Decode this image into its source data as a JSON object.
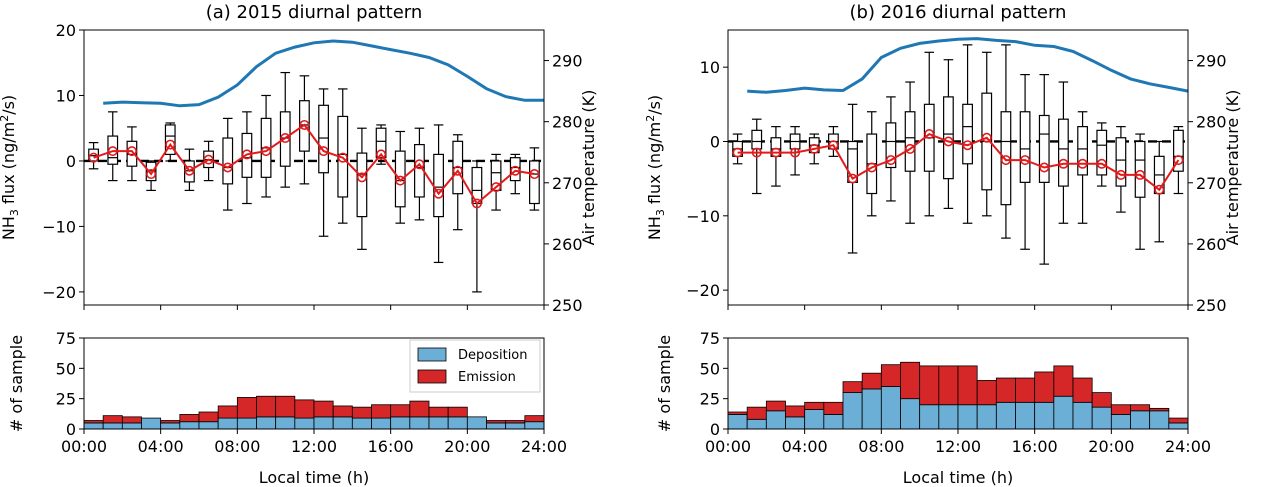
{
  "chart_data": [
    {
      "type": "box",
      "title": "(a) 2015 diurnal pattern",
      "ylabel_main": "NH",
      "ylabel_sub": "3",
      "ylabel_rest": " flux (ng/m",
      "ylabel_sup": "2",
      "ylabel_end": "/s)",
      "y2label": "Air temperature (K)",
      "ylim": [
        -22,
        20
      ],
      "y2lim": [
        250,
        295
      ],
      "yticks": [
        20,
        10,
        0,
        -10,
        -20
      ],
      "ytick_labels": [
        "20",
        "10",
        "0",
        "−10",
        "−20"
      ],
      "y2ticks": [
        290,
        280,
        270,
        260,
        250
      ],
      "y2tick_labels": [
        "290",
        "280",
        "270",
        "260",
        "250"
      ],
      "x_hours": [
        0.5,
        1.5,
        2.5,
        3.5,
        4.5,
        5.5,
        6.5,
        7.5,
        8.5,
        9.5,
        10.5,
        11.5,
        12.5,
        13.5,
        14.5,
        15.5,
        16.5,
        17.5,
        18.5,
        19.5,
        20.5,
        21.5,
        22.5,
        23.5
      ],
      "boxes": [
        {
          "whislo": -1.2,
          "q1": 0.0,
          "med": 0.8,
          "q3": 1.8,
          "whishi": 2.8
        },
        {
          "whislo": -3.0,
          "q1": -0.5,
          "med": 0.5,
          "q3": 3.8,
          "whishi": 7.5
        },
        {
          "whislo": -3.0,
          "q1": -0.8,
          "med": 1.0,
          "q3": 3.0,
          "whishi": 5.2
        },
        {
          "whislo": -4.5,
          "q1": -3.0,
          "med": -1.5,
          "q3": -0.2,
          "whishi": 0.0
        },
        {
          "whislo": 0.0,
          "q1": 1.0,
          "med": 3.8,
          "q3": 5.5,
          "whishi": 5.8
        },
        {
          "whislo": -4.5,
          "q1": -3.2,
          "med": -1.5,
          "q3": 0.0,
          "whishi": 1.8
        },
        {
          "whislo": -3.0,
          "q1": -1.0,
          "med": 0.2,
          "q3": 1.5,
          "whishi": 3.0
        },
        {
          "whislo": -7.5,
          "q1": -3.5,
          "med": -1.0,
          "q3": 3.5,
          "whishi": 6.5
        },
        {
          "whislo": -6.5,
          "q1": -2.5,
          "med": 0.5,
          "q3": 4.2,
          "whishi": 7.5
        },
        {
          "whislo": -5.5,
          "q1": -2.5,
          "med": 2.0,
          "q3": 6.5,
          "whishi": 10.0
        },
        {
          "whislo": -4.0,
          "q1": -0.8,
          "med": 3.5,
          "q3": 7.5,
          "whishi": 13.5
        },
        {
          "whislo": -3.5,
          "q1": 1.5,
          "med": 5.5,
          "q3": 9.2,
          "whishi": 13.0
        },
        {
          "whislo": -11.5,
          "q1": -1.8,
          "med": 3.5,
          "q3": 8.5,
          "whishi": 11.0
        },
        {
          "whislo": -9.5,
          "q1": -5.5,
          "med": 1.0,
          "q3": 6.8,
          "whishi": 11.0
        },
        {
          "whislo": -13.5,
          "q1": -8.5,
          "med": -2.0,
          "q3": 1.2,
          "whishi": 5.0
        },
        {
          "whislo": -0.5,
          "q1": 0.5,
          "med": 3.0,
          "q3": 5.0,
          "whishi": 5.5
        },
        {
          "whislo": -9.5,
          "q1": -7.0,
          "med": -3.0,
          "q3": 1.5,
          "whishi": 4.5
        },
        {
          "whislo": -9.0,
          "q1": -5.5,
          "med": -1.0,
          "q3": 2.5,
          "whishi": 5.0
        },
        {
          "whislo": -15.5,
          "q1": -8.5,
          "med": -4.0,
          "q3": 1.0,
          "whishi": 5.5
        },
        {
          "whislo": -10.5,
          "q1": -5.0,
          "med": -1.0,
          "q3": 3.0,
          "whishi": 4.0
        },
        {
          "whislo": -20.0,
          "q1": -6.5,
          "med": -4.5,
          "q3": -1.0,
          "whishi": 0.0
        },
        {
          "whislo": -7.5,
          "q1": -4.5,
          "med": -1.8,
          "q3": 0.0,
          "whishi": 1.0
        },
        {
          "whislo": -5.0,
          "q1": -3.0,
          "med": -1.0,
          "q3": 0.5,
          "whishi": 1.0
        },
        {
          "whislo": -7.5,
          "q1": -6.5,
          "med": -2.0,
          "q3": 0.0,
          "whishi": 2.0
        }
      ],
      "mean_flux": [
        0.5,
        1.5,
        1.5,
        -2.0,
        2.5,
        -1.5,
        0.2,
        -1.0,
        1.0,
        1.5,
        3.5,
        5.5,
        1.5,
        0.5,
        -2.5,
        1.0,
        -3.0,
        -0.5,
        -5.0,
        -1.5,
        -6.5,
        -4.0,
        -1.5,
        -2.0
      ],
      "temperature_hours": [
        1,
        2,
        3,
        4,
        5,
        6,
        7,
        8,
        9,
        10,
        11,
        12,
        13,
        14,
        15,
        16,
        17,
        18,
        19,
        20,
        21,
        22,
        23,
        24
      ],
      "temperature_K": [
        283.0,
        283.2,
        283.1,
        283.0,
        282.6,
        282.8,
        284.0,
        286.0,
        289.0,
        291.2,
        292.2,
        292.9,
        293.2,
        293.0,
        292.4,
        291.8,
        291.2,
        290.5,
        289.3,
        287.4,
        285.4,
        284.1,
        283.5,
        283.5
      ],
      "bars": {
        "ylabel": "# of sample",
        "ylim": [
          0,
          75
        ],
        "yticks": [
          0,
          25,
          50,
          75
        ],
        "ytick_labels": [
          "0",
          "25",
          "50",
          "75"
        ],
        "deposition": [
          5,
          5,
          5,
          9,
          5,
          6,
          6,
          9,
          9,
          10,
          10,
          9,
          10,
          10,
          9,
          9,
          10,
          10,
          10,
          10,
          10,
          5,
          5,
          6
        ],
        "emission": [
          2,
          6,
          5,
          0,
          2,
          6,
          8,
          10,
          17,
          17,
          17,
          15,
          13,
          9,
          9,
          11,
          10,
          13,
          8,
          8,
          0,
          2,
          2,
          5
        ]
      }
    },
    {
      "type": "box",
      "title": "(b) 2016 diurnal pattern",
      "ylabel_main": "NH",
      "ylabel_sub": "3",
      "ylabel_rest": " flux (ng/m",
      "ylabel_sup": "2",
      "ylabel_end": "/s)",
      "y2label": "Air temperature (K)",
      "ylim": [
        -22,
        15
      ],
      "y2lim": [
        250,
        295
      ],
      "yticks": [
        10,
        0,
        -10,
        -20
      ],
      "ytick_labels": [
        "10",
        "0",
        "−10",
        "−20"
      ],
      "y2ticks": [
        290,
        280,
        270,
        260,
        250
      ],
      "y2tick_labels": [
        "290",
        "280",
        "270",
        "260",
        "250"
      ],
      "x_hours": [
        0.5,
        1.5,
        2.5,
        3.5,
        4.5,
        5.5,
        6.5,
        7.5,
        8.5,
        9.5,
        10.5,
        11.5,
        12.5,
        13.5,
        14.5,
        15.5,
        16.5,
        17.5,
        18.5,
        19.5,
        20.5,
        21.5,
        22.5,
        23.5
      ],
      "boxes": [
        {
          "whislo": -3.0,
          "q1": -2.0,
          "med": -1.0,
          "q3": 0.0,
          "whishi": 1.0
        },
        {
          "whislo": -7.0,
          "q1": -1.0,
          "med": 0.0,
          "q3": 1.5,
          "whishi": 3.0
        },
        {
          "whislo": -6.0,
          "q1": -2.0,
          "med": -1.0,
          "q3": 0.5,
          "whishi": 2.0
        },
        {
          "whislo": -4.5,
          "q1": -1.0,
          "med": 0.0,
          "q3": 1.0,
          "whishi": 2.0
        },
        {
          "whislo": -3.0,
          "q1": -1.5,
          "med": -0.5,
          "q3": 0.5,
          "whishi": 1.0
        },
        {
          "whislo": -2.0,
          "q1": -1.0,
          "med": 0.0,
          "q3": 1.0,
          "whishi": 2.0
        },
        {
          "whislo": -15.0,
          "q1": -5.5,
          "med": -1.0,
          "q3": 0.0,
          "whishi": 5.0
        },
        {
          "whislo": -10.0,
          "q1": -7.0,
          "med": -3.0,
          "q3": 1.0,
          "whishi": 4.0
        },
        {
          "whislo": -8.0,
          "q1": -3.5,
          "med": 0.0,
          "q3": 2.5,
          "whishi": 6.0
        },
        {
          "whislo": -11.0,
          "q1": -4.0,
          "med": 0.5,
          "q3": 4.0,
          "whishi": 8.0
        },
        {
          "whislo": -10.0,
          "q1": -4.0,
          "med": 0.5,
          "q3": 5.0,
          "whishi": 12.0
        },
        {
          "whislo": -9.0,
          "q1": -5.0,
          "med": 1.0,
          "q3": 6.0,
          "whishi": 11.0
        },
        {
          "whislo": -11.0,
          "q1": -3.0,
          "med": 2.0,
          "q3": 5.0,
          "whishi": 13.0
        },
        {
          "whislo": -10.0,
          "q1": -6.5,
          "med": 0.0,
          "q3": 6.5,
          "whishi": 12.0
        },
        {
          "whislo": -13.0,
          "q1": -8.5,
          "med": 0.0,
          "q3": 4.0,
          "whishi": 13.0
        },
        {
          "whislo": -14.5,
          "q1": -5.5,
          "med": -1.0,
          "q3": 4.0,
          "whishi": 9.0
        },
        {
          "whislo": -16.5,
          "q1": -5.5,
          "med": 1.0,
          "q3": 3.5,
          "whishi": 9.0
        },
        {
          "whislo": -11.0,
          "q1": -6.0,
          "med": -1.0,
          "q3": 3.0,
          "whishi": 8.0
        },
        {
          "whislo": -11.0,
          "q1": -4.5,
          "med": -1.0,
          "q3": 2.0,
          "whishi": 4.0
        },
        {
          "whislo": -6.0,
          "q1": -4.5,
          "med": -0.5,
          "q3": 1.5,
          "whishi": 2.5
        },
        {
          "whislo": -9.5,
          "q1": -6.0,
          "med": -2.5,
          "q3": 0.5,
          "whishi": 2.0
        },
        {
          "whislo": -14.5,
          "q1": -7.5,
          "med": -2.5,
          "q3": 0.0,
          "whishi": 1.0
        },
        {
          "whislo": -13.5,
          "q1": -7.0,
          "med": -4.5,
          "q3": -2.0,
          "whishi": 0.0
        },
        {
          "whislo": -7.0,
          "q1": -4.0,
          "med": -2.0,
          "q3": 1.5,
          "whishi": 2.0
        }
      ],
      "mean_flux": [
        -1.5,
        -1.5,
        -1.5,
        -1.5,
        -1.0,
        -0.5,
        -5.0,
        -3.5,
        -2.5,
        -1.0,
        1.0,
        0.0,
        -0.5,
        0.5,
        -2.5,
        -2.5,
        -3.5,
        -3.0,
        -3.0,
        -3.0,
        -4.5,
        -4.5,
        -6.5,
        -2.5
      ],
      "temperature_hours": [
        1,
        2,
        3,
        4,
        5,
        6,
        7,
        8,
        9,
        10,
        11,
        12,
        13,
        14,
        15,
        16,
        17,
        18,
        19,
        20,
        21,
        22,
        23,
        24
      ],
      "temperature_K": [
        285.0,
        284.8,
        285.1,
        285.5,
        285.2,
        285.1,
        287.0,
        290.5,
        292.0,
        292.8,
        293.2,
        293.5,
        293.6,
        293.3,
        293.1,
        292.5,
        292.3,
        291.5,
        290.0,
        288.4,
        287.0,
        286.2,
        285.6,
        285.0
      ],
      "bars": {
        "ylabel": "# of sample",
        "ylim": [
          0,
          75
        ],
        "yticks": [
          0,
          25,
          50,
          75
        ],
        "ytick_labels": [
          "0",
          "25",
          "50",
          "75"
        ],
        "deposition": [
          12,
          8,
          15,
          10,
          16,
          12,
          30,
          33,
          35,
          25,
          20,
          20,
          20,
          20,
          22,
          22,
          22,
          27,
          22,
          18,
          12,
          15,
          15,
          5
        ],
        "emission": [
          2,
          10,
          8,
          9,
          6,
          10,
          9,
          13,
          18,
          30,
          32,
          32,
          32,
          20,
          20,
          20,
          25,
          25,
          20,
          12,
          8,
          5,
          2,
          4
        ]
      }
    }
  ],
  "legend": {
    "deposition": "Deposition",
    "emission": "Emission",
    "deposition_color": "#6baed6",
    "emission_color": "#d62728"
  },
  "colors": {
    "temperature": "#1f77b4",
    "mean_flux": "#e31a1c"
  },
  "x_axis": {
    "label": "Local time (h)",
    "ticks": [
      0,
      4,
      8,
      12,
      16,
      20,
      24
    ],
    "tick_labels": [
      "00:00",
      "04:00",
      "08:00",
      "12:00",
      "16:00",
      "20:00",
      "24:00"
    ]
  }
}
